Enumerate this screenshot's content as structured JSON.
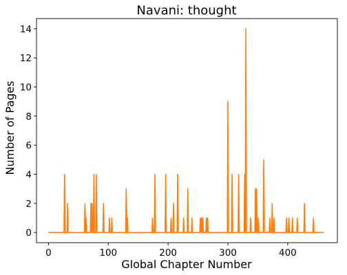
{
  "chart_data": {
    "type": "line",
    "title": "Navani: thought",
    "xlabel": "Global Chapter Number",
    "ylabel": "Number of Pages",
    "xlim": [
      -20,
      483
    ],
    "ylim": [
      -0.7,
      14.7
    ],
    "xticks": [
      0,
      100,
      200,
      300,
      400
    ],
    "yticks": [
      0,
      2,
      4,
      6,
      8,
      10,
      12,
      14
    ],
    "grid": false,
    "line_color": "#ff7f0e",
    "x_range": [
      0,
      460
    ],
    "series": [
      {
        "points": [
          [
            27,
            4
          ],
          [
            32,
            2
          ],
          [
            61,
            2
          ],
          [
            63,
            1
          ],
          [
            71,
            2
          ],
          [
            73,
            2
          ],
          [
            76,
            4
          ],
          [
            80,
            4
          ],
          [
            92,
            2
          ],
          [
            102,
            1
          ],
          [
            106,
            1
          ],
          [
            130,
            3
          ],
          [
            132,
            1
          ],
          [
            174,
            1
          ],
          [
            178,
            4
          ],
          [
            196,
            4
          ],
          [
            205,
            1
          ],
          [
            209,
            2
          ],
          [
            216,
            4
          ],
          [
            226,
            1
          ],
          [
            233,
            3
          ],
          [
            240,
            1
          ],
          [
            254,
            1
          ],
          [
            256,
            1
          ],
          [
            258,
            1
          ],
          [
            264,
            1
          ],
          [
            266,
            1
          ],
          [
            300,
            9
          ],
          [
            307,
            4
          ],
          [
            318,
            4
          ],
          [
            328,
            4
          ],
          [
            330,
            14
          ],
          [
            338,
            1
          ],
          [
            346,
            3
          ],
          [
            348,
            3
          ],
          [
            351,
            1
          ],
          [
            360,
            5
          ],
          [
            370,
            1
          ],
          [
            374,
            2
          ],
          [
            377,
            1
          ],
          [
            398,
            1
          ],
          [
            402,
            1
          ],
          [
            408,
            1
          ],
          [
            416,
            1
          ],
          [
            428,
            2
          ],
          [
            443,
            1
          ]
        ]
      }
    ]
  }
}
